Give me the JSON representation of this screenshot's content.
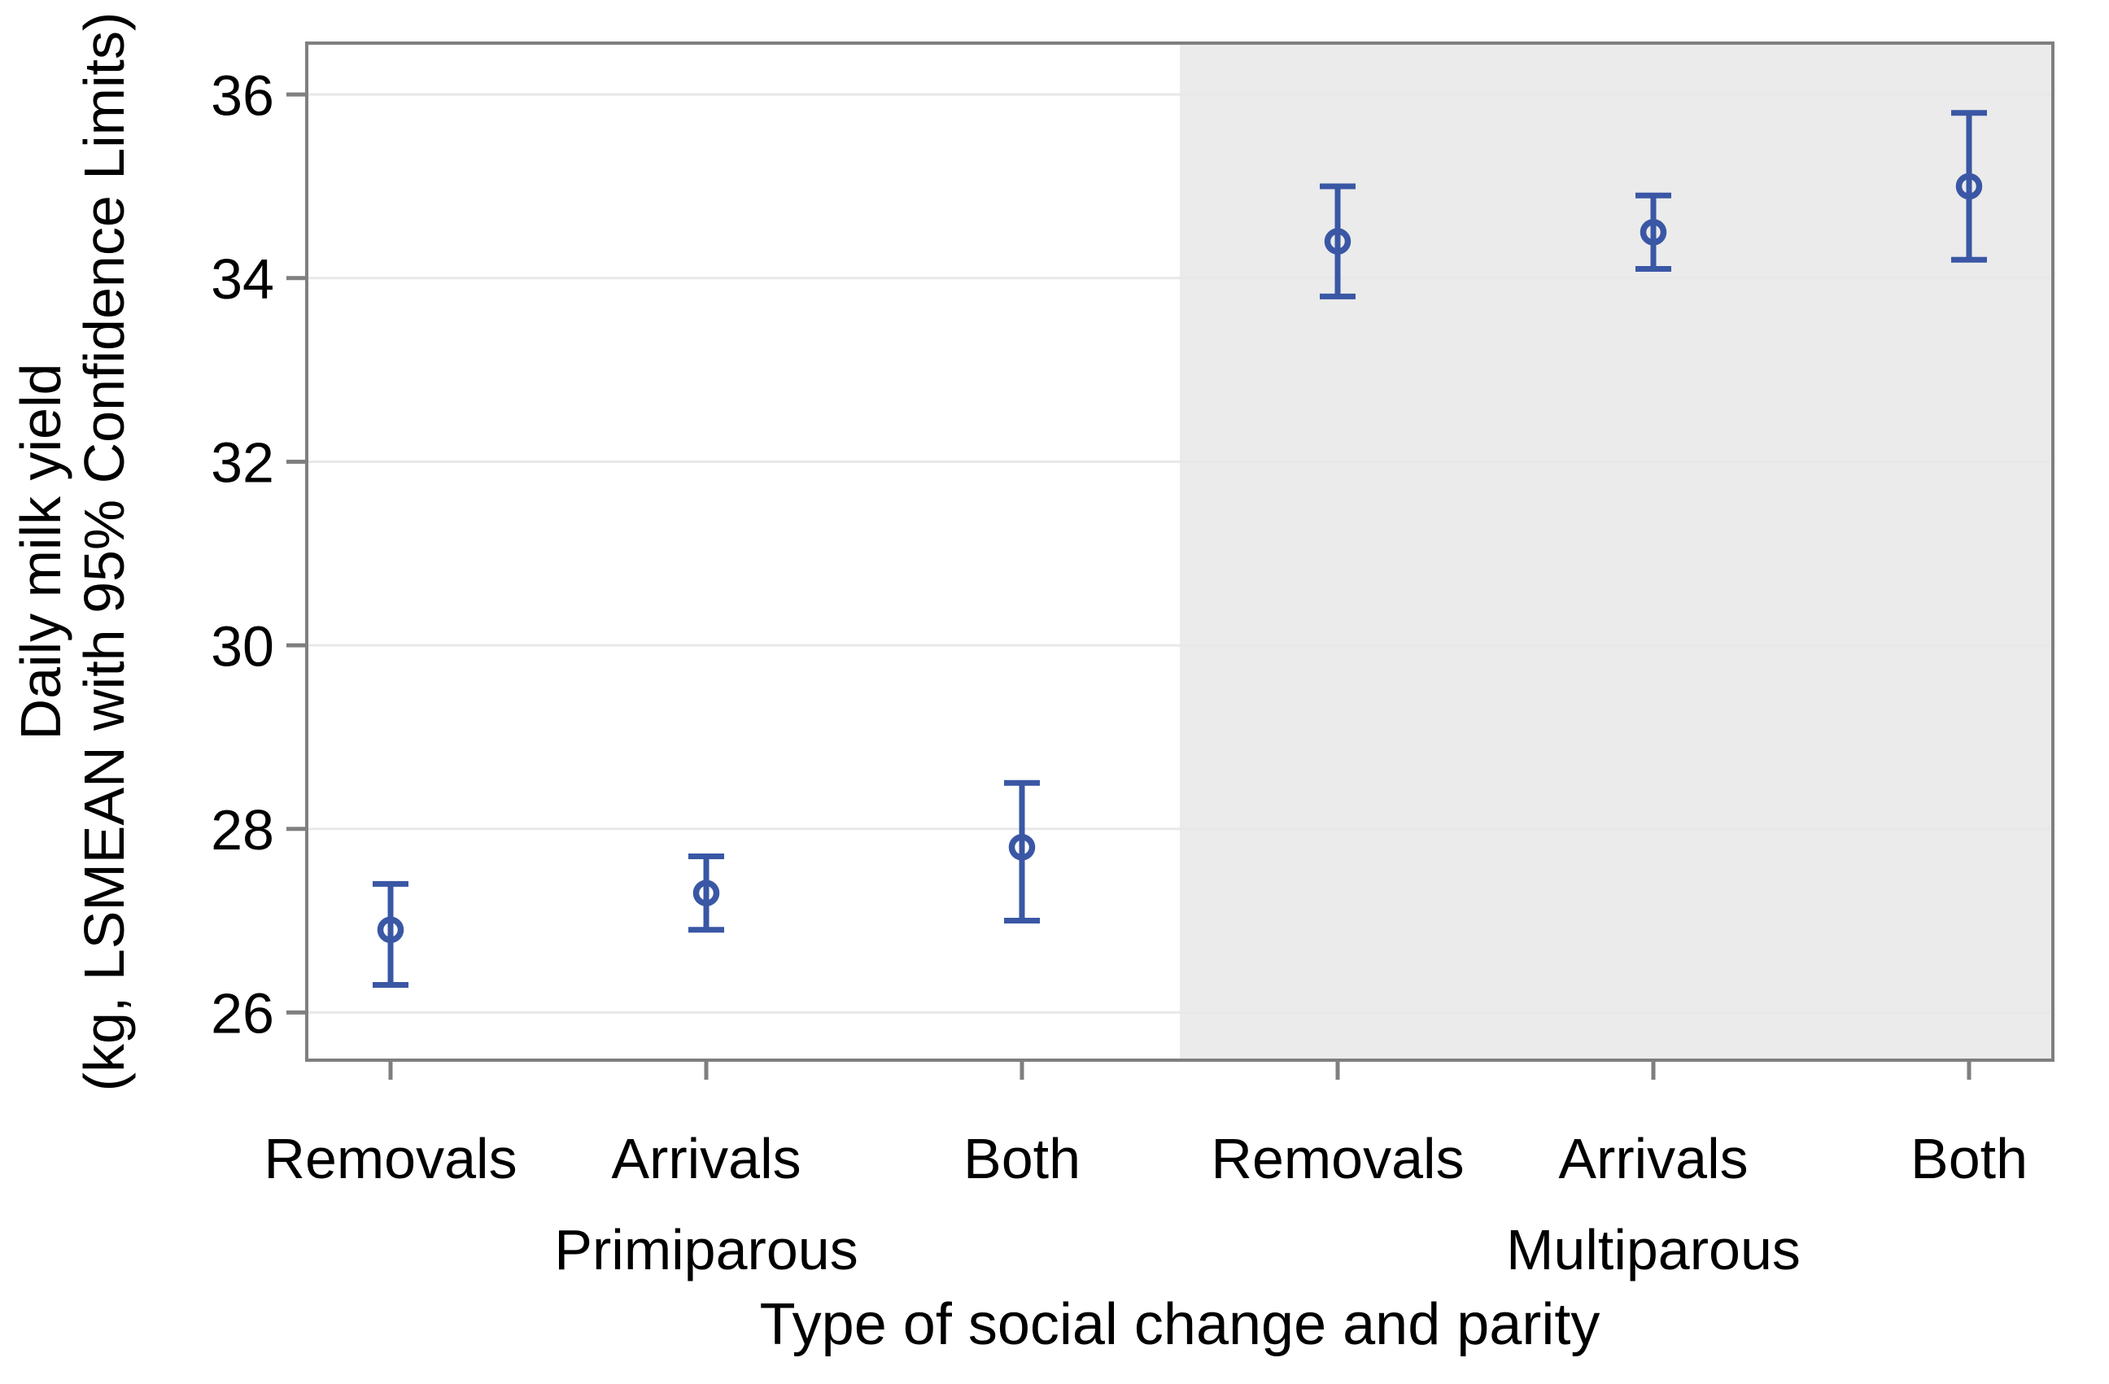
{
  "chart_data": {
    "type": "scatter",
    "subtype": "errorbar-dotplot",
    "title": "",
    "xlabel": "Type of social change and parity",
    "ylabel_line1": "Daily milk yield",
    "ylabel_line2": "(kg, LSMEAN with 95% Confidence Limits)",
    "categories": [
      "Removals",
      "Arrivals",
      "Both",
      "Removals",
      "Arrivals",
      "Both"
    ],
    "group_labels": [
      "Primiparous",
      "Multiparous"
    ],
    "series": [
      {
        "name": "Daily milk yield LSMEAN with 95% CL",
        "points": [
          {
            "group": "Primiparous",
            "category": "Removals",
            "mean": 26.9,
            "ci_low": 26.3,
            "ci_high": 27.4
          },
          {
            "group": "Primiparous",
            "category": "Arrivals",
            "mean": 27.3,
            "ci_low": 26.9,
            "ci_high": 27.7
          },
          {
            "group": "Primiparous",
            "category": "Both",
            "mean": 27.8,
            "ci_low": 27.0,
            "ci_high": 28.5
          },
          {
            "group": "Multiparous",
            "category": "Removals",
            "mean": 34.4,
            "ci_low": 33.8,
            "ci_high": 35.0
          },
          {
            "group": "Multiparous",
            "category": "Arrivals",
            "mean": 34.5,
            "ci_low": 34.1,
            "ci_high": 34.9
          },
          {
            "group": "Multiparous",
            "category": "Both",
            "mean": 35.0,
            "ci_low": 34.2,
            "ci_high": 35.8
          }
        ]
      }
    ],
    "y_ticks": [
      26,
      28,
      30,
      32,
      34,
      36
    ],
    "ylim": [
      25.48,
      36.56
    ],
    "grid": true,
    "legend": "none",
    "highlight_band": {
      "group": "Multiparous",
      "note": "right half of plot shaded"
    },
    "colors": {
      "marker_blue": "#3a57a5",
      "axis_gray": "#7f7f7f",
      "gridline": "#e8e8e8",
      "band_fill": "#ebebeb",
      "text": "#000000",
      "background": "#ffffff"
    }
  }
}
